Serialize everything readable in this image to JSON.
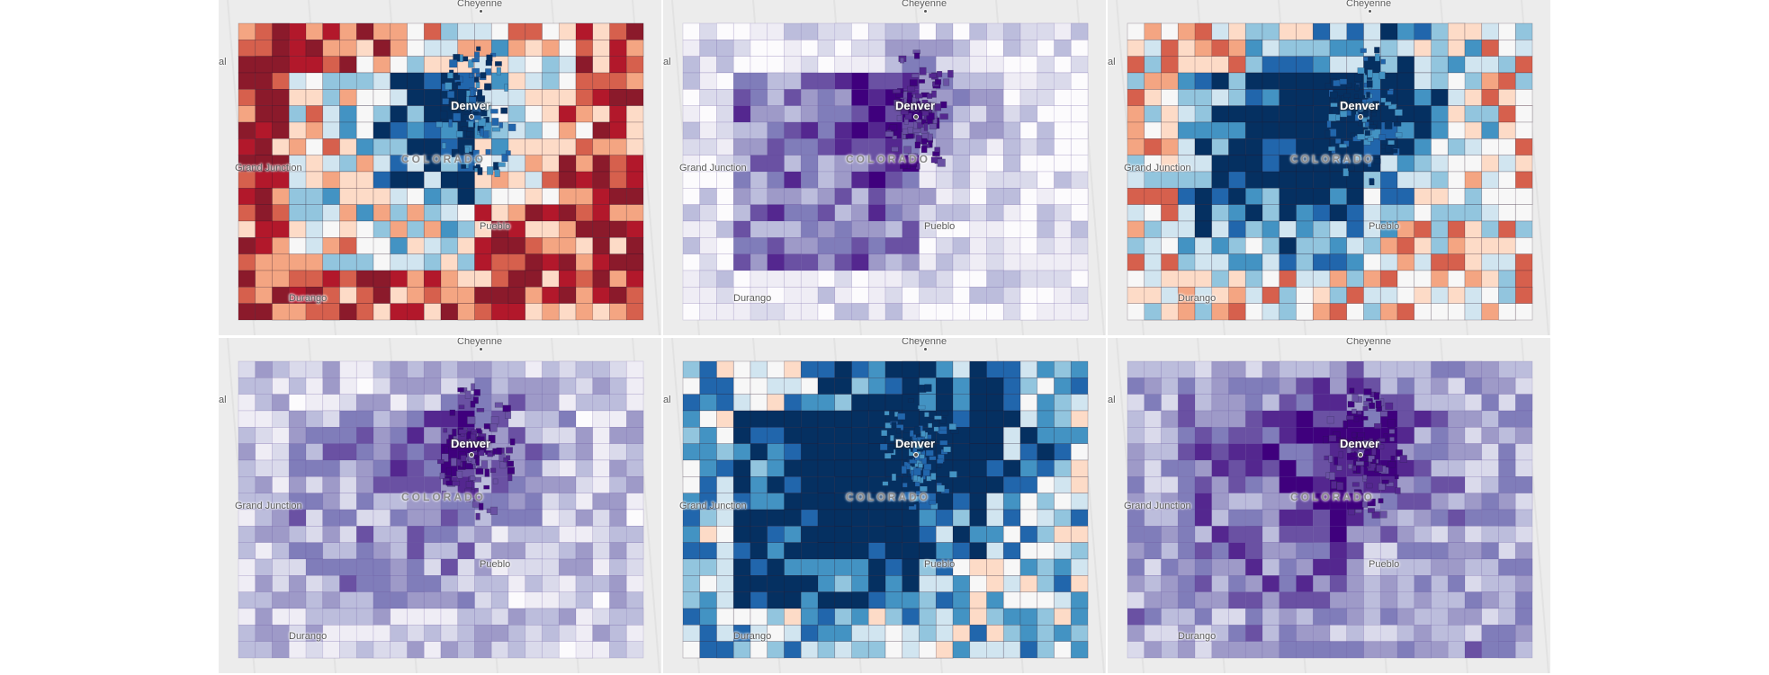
{
  "labels": {
    "cheyenne": "Cheyenne",
    "grand_junction": "Grand Junction",
    "denver": "Denver",
    "colorado": "COLORADO",
    "pueblo": "Pueblo",
    "durango": "Durango",
    "edge_left": "al"
  },
  "panels": [
    {
      "id": "top-left",
      "palette": "diverging",
      "bias": 0.85
    },
    {
      "id": "top-center",
      "palette": "purples",
      "bias": 0.15
    },
    {
      "id": "top-right",
      "palette": "diverging",
      "bias": 0.55
    },
    {
      "id": "bottom-left",
      "palette": "purples",
      "bias": 0.3
    },
    {
      "id": "bottom-center",
      "palette": "diverging",
      "bias": 0.35
    },
    {
      "id": "bottom-right",
      "palette": "purples",
      "bias": 0.45
    }
  ],
  "colors": {
    "diverging": [
      "#053061",
      "#2166ac",
      "#4393c3",
      "#92c5de",
      "#d1e5f0",
      "#f7f7f7",
      "#fddbc7",
      "#f4a582",
      "#d6604d",
      "#b2182b",
      "#8b1a2b"
    ],
    "purples": [
      "#fcfbfd",
      "#efedf5",
      "#dadaeb",
      "#bcbddc",
      "#9e9ac8",
      "#807dba",
      "#6a51a3",
      "#54278f",
      "#3f007d"
    ],
    "basemap": "#ececec"
  }
}
